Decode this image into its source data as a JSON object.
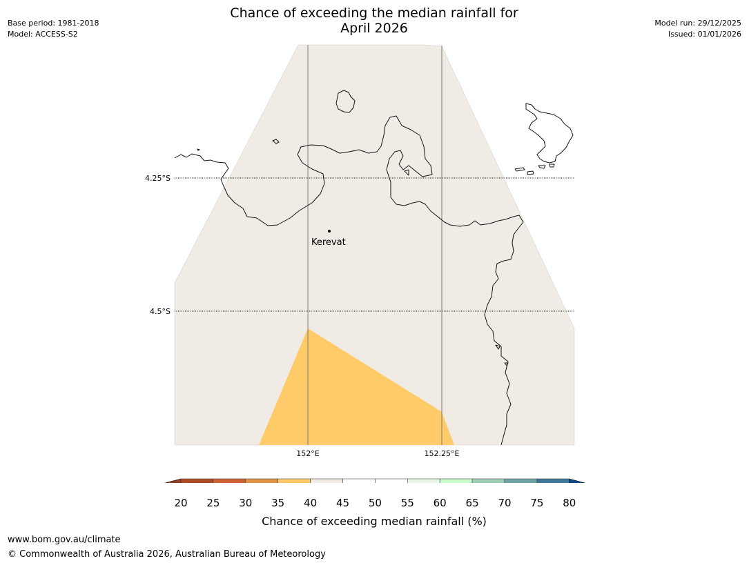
{
  "header": {
    "title_line1": "Chance of exceeding the median rainfall for",
    "title_line2": "April 2026",
    "base_period": "Base period: 1981-2018",
    "model": "Model: ACCESS-S2",
    "model_run": "Model run: 29/12/2025",
    "issued": "Issued: 01/01/2026"
  },
  "map": {
    "lat_labels": [
      "4.25°S",
      "4.5°S"
    ],
    "lon_labels": [
      "152°E",
      "152.25°E"
    ],
    "town": "Kerevat",
    "colors": {
      "background": "#f0ebe5",
      "below_band": "#ffcb69",
      "coast": "#000000",
      "grid": "#7a7a7a"
    }
  },
  "colorbar": {
    "ticks": [
      "20",
      "25",
      "30",
      "35",
      "40",
      "45",
      "50",
      "55",
      "60",
      "65",
      "70",
      "75",
      "80"
    ],
    "colors": [
      "#993f24",
      "#b04a23",
      "#cd6232",
      "#e29446",
      "#ffcb69",
      "#f0ebe5",
      "#ffffff",
      "#ffffff",
      "#e9f7e9",
      "#c8fccb",
      "#9ecfb8",
      "#6ea4a6",
      "#3e7898",
      "#0f4c8c"
    ],
    "label": "Chance of exceeding median rainfall (%)"
  },
  "footer": {
    "url": "www.bom.gov.au/climate",
    "copyright": "© Commonwealth of Australia 2026, Australian Bureau of Meteorology"
  }
}
